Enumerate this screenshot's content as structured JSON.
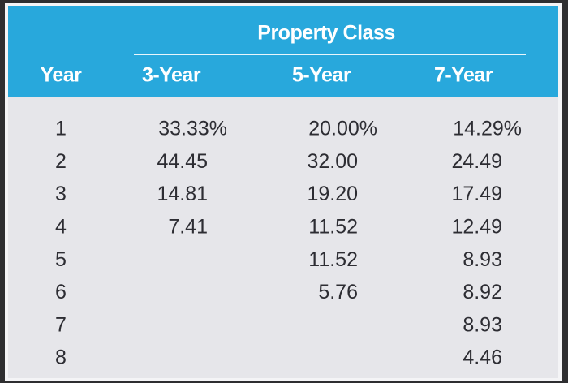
{
  "header": {
    "title": "Property Class"
  },
  "table": {
    "columns": [
      {
        "header": "Year",
        "cells": [
          "1",
          "2",
          "3",
          "4",
          "5",
          "6",
          "7",
          "8"
        ]
      },
      {
        "header": "3-Year",
        "cells": [
          "33.33%",
          "44.45",
          "14.81",
          "7.41"
        ]
      },
      {
        "header": "5-Year",
        "cells": [
          "20.00%",
          "32.00",
          "19.20",
          "11.52",
          "11.52",
          "5.76"
        ]
      },
      {
        "header": "7-Year",
        "cells": [
          "14.29%",
          "24.49",
          "17.49",
          "12.49",
          "8.93",
          "8.92",
          "8.93",
          "4.46"
        ]
      }
    ]
  }
}
